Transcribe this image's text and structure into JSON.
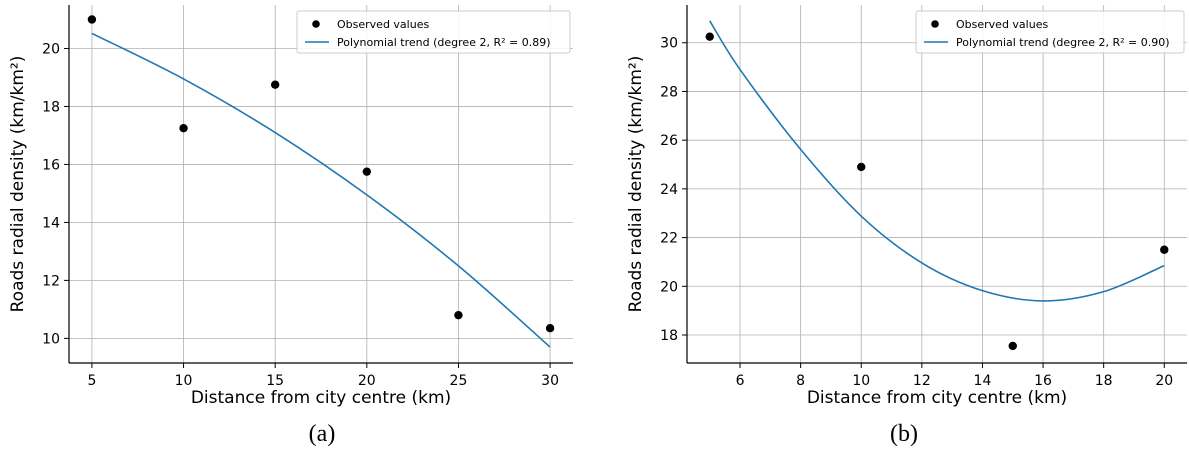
{
  "colors": {
    "marker": "#000000",
    "trend": "#1f77b4",
    "grid": "#b0b0b0"
  },
  "chart_data": [
    {
      "type": "scatter",
      "caption": "(a)",
      "xlabel": "Distance from city centre (km)",
      "ylabel": "Roads radial density (km/km²)",
      "xlim": [
        3.75,
        31.25
      ],
      "ylim": [
        9.15,
        21.5
      ],
      "xticks": [
        5,
        10,
        15,
        20,
        25,
        30
      ],
      "yticks": [
        10,
        12,
        14,
        16,
        18,
        20
      ],
      "grid": true,
      "legend": "top-right",
      "series": [
        {
          "name": "Observed values",
          "kind": "points",
          "x": [
            5,
            10,
            15,
            20,
            25,
            30
          ],
          "y": [
            21.0,
            17.25,
            18.75,
            15.75,
            10.8,
            10.35
          ]
        },
        {
          "name": "Polynomial trend (degree 2, R² = 0.89)",
          "kind": "line",
          "x": [
            5,
            10,
            15,
            20,
            25,
            30
          ],
          "y": [
            20.52,
            18.95,
            17.1,
            14.95,
            12.5,
            9.7
          ]
        }
      ]
    },
    {
      "type": "scatter",
      "caption": "(b)",
      "xlabel": "Distance from city centre (km)",
      "ylabel": "Roads radial density (km/km²)",
      "xlim": [
        4.25,
        20.75
      ],
      "ylim": [
        16.85,
        31.55
      ],
      "xticks": [
        6,
        8,
        10,
        12,
        14,
        16,
        18,
        20
      ],
      "yticks": [
        18,
        20,
        22,
        24,
        26,
        28,
        30
      ],
      "grid": true,
      "legend": "top-right",
      "series": [
        {
          "name": "Observed values",
          "kind": "points",
          "x": [
            5,
            10,
            15,
            20
          ],
          "y": [
            30.25,
            24.9,
            17.55,
            21.5
          ]
        },
        {
          "name": "Polynomial trend (degree 2, R² = 0.90)",
          "kind": "line",
          "x": [
            5,
            6,
            8,
            10,
            12,
            14,
            16,
            18,
            20
          ],
          "y": [
            30.9,
            28.9,
            25.62,
            22.88,
            20.96,
            19.82,
            19.4,
            19.78,
            20.85
          ]
        }
      ]
    }
  ]
}
